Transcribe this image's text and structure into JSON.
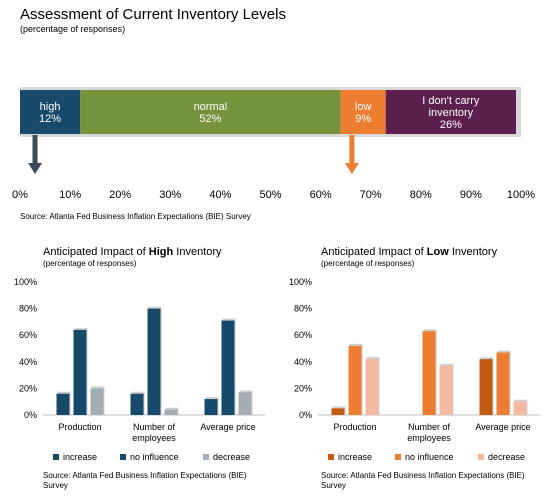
{
  "chart_data": [
    {
      "type": "bar",
      "orientation": "horizontal-stacked",
      "title": "Assessment of Current Inventory Levels",
      "subtitle": "(percentage of responses)",
      "source": "Source: Atlanta Fed Business Inflation Expectations (BIE) Survey",
      "segments": [
        {
          "name": "high",
          "label_lines": [
            "high"
          ],
          "value": 12,
          "value_label": "12%",
          "color": "#17496b",
          "arrow": true,
          "arrow_color": "#3c4a5a"
        },
        {
          "name": "normal",
          "label_lines": [
            "normal"
          ],
          "value": 52,
          "value_label": "52%",
          "color": "#77923c"
        },
        {
          "name": "low",
          "label_lines": [
            "low"
          ],
          "value": 9,
          "value_label": "9%",
          "color": "#ed7d31",
          "arrow": true,
          "arrow_color": "#ed7d31"
        },
        {
          "name": "dont-carry",
          "label_lines": [
            "I don't carry",
            "inventory"
          ],
          "value": 26,
          "value_label": "26%",
          "color": "#5c1f4e"
        }
      ],
      "xlim": [
        0,
        100
      ],
      "ticks": [
        "0%",
        "10%",
        "20%",
        "30%",
        "40%",
        "50%",
        "60%",
        "70%",
        "80%",
        "90%",
        "100%"
      ]
    },
    {
      "type": "bar",
      "title_prefix": "Anticipated Impact of ",
      "title_bold": "High",
      "title_suffix": " Inventory",
      "subtitle": "(percentage of responses)",
      "categories": [
        [
          "Production"
        ],
        [
          "Number of",
          "employees"
        ],
        [
          "Average price"
        ]
      ],
      "series": [
        {
          "name": "increase",
          "values": [
            16,
            16,
            12
          ],
          "color": "#17496b"
        },
        {
          "name": "no influence",
          "values": [
            64,
            80,
            71
          ],
          "color": "#17496b"
        },
        {
          "name": "decrease",
          "values": [
            20,
            4,
            17
          ],
          "color": "#a6acb4"
        }
      ],
      "ylim": [
        0,
        100
      ],
      "yticks": [
        "0%",
        "20%",
        "40%",
        "60%",
        "80%",
        "100%"
      ],
      "source": "Source: Atlanta Fed Business Inflation Expectations (BIE) Survey"
    },
    {
      "type": "bar",
      "title_prefix": "Anticipated Impact of ",
      "title_bold": "Low",
      "title_suffix": " Inventory",
      "subtitle": "(percentage of responses)",
      "categories": [
        [
          "Production"
        ],
        [
          "Number of",
          "employees"
        ],
        [
          "Average price"
        ]
      ],
      "series": [
        {
          "name": "increase",
          "values": [
            5,
            0,
            42
          ],
          "color": "#c55a11"
        },
        {
          "name": "no influence",
          "values": [
            52,
            63,
            47
          ],
          "color": "#ed7d31"
        },
        {
          "name": "decrease",
          "values": [
            42,
            37,
            10
          ],
          "color": "#f4b9a0"
        }
      ],
      "ylim": [
        0,
        100
      ],
      "yticks": [
        "0%",
        "20%",
        "40%",
        "60%",
        "80%",
        "100%"
      ],
      "source": "Source: Atlanta Fed Business Inflation Expectations (BIE) Survey"
    }
  ]
}
